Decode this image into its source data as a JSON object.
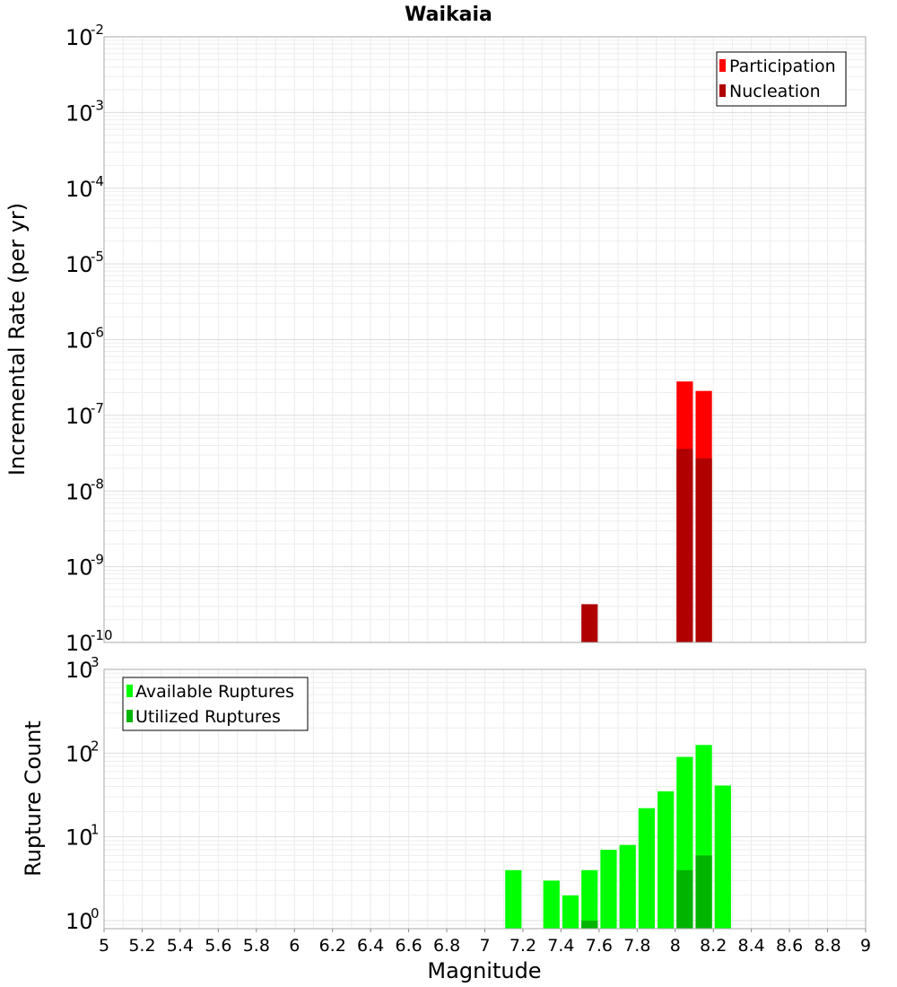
{
  "chart_data": [
    {
      "type": "bar",
      "title": "Waikaia",
      "ylabel": "Incremental Rate (per yr)",
      "xlabel": "",
      "yscale": "log",
      "ylim": [
        1e-10,
        0.01
      ],
      "xlim": [
        5,
        9
      ],
      "bin_width": 0.1,
      "grid": true,
      "legend_position": "top-right",
      "series": [
        {
          "name": "Participation",
          "color": "#ff0000",
          "x": [
            8.05,
            8.15
          ],
          "values": [
            2.8e-07,
            2.1e-07
          ]
        },
        {
          "name": "Nucleation",
          "color": "#b00000",
          "x": [
            7.55,
            8.05,
            8.15
          ],
          "values": [
            3.2e-10,
            3.6e-08,
            2.7e-08
          ]
        }
      ],
      "y_ticks": [
        {
          "base": "10",
          "exp": "-2"
        },
        {
          "base": "10",
          "exp": "-3"
        },
        {
          "base": "10",
          "exp": "-4"
        },
        {
          "base": "10",
          "exp": "-5"
        },
        {
          "base": "10",
          "exp": "-6"
        },
        {
          "base": "10",
          "exp": "-7"
        },
        {
          "base": "10",
          "exp": "-8"
        },
        {
          "base": "10",
          "exp": "-9"
        },
        {
          "base": "10",
          "exp": "-10"
        }
      ]
    },
    {
      "type": "bar",
      "title": "",
      "ylabel": "Rupture Count",
      "xlabel": "Magnitude",
      "yscale": "log",
      "ylim": [
        0.8,
        1000
      ],
      "xlim": [
        5,
        9
      ],
      "bin_width": 0.1,
      "grid": true,
      "legend_position": "top-left",
      "series": [
        {
          "name": "Available Ruptures",
          "color": "#00ff00",
          "x": [
            7.15,
            7.35,
            7.45,
            7.55,
            7.65,
            7.75,
            7.85,
            7.95,
            8.05,
            8.15,
            8.25
          ],
          "values": [
            4,
            3,
            2,
            4,
            7,
            8,
            22,
            35,
            90,
            125,
            41
          ]
        },
        {
          "name": "Utilized Ruptures",
          "color": "#00b400",
          "x": [
            7.55,
            8.05,
            8.15
          ],
          "values": [
            1,
            4,
            6
          ]
        }
      ],
      "y_ticks": [
        {
          "base": "10",
          "exp": "3"
        },
        {
          "base": "10",
          "exp": "2"
        },
        {
          "base": "10",
          "exp": "1"
        },
        {
          "base": "10",
          "exp": "0"
        }
      ],
      "x_ticks": [
        "5",
        "5.2",
        "5.4",
        "5.6",
        "5.8",
        "6",
        "6.2",
        "6.4",
        "6.6",
        "6.8",
        "7",
        "7.2",
        "7.4",
        "7.6",
        "7.8",
        "8",
        "8.2",
        "8.4",
        "8.6",
        "8.8",
        "9"
      ]
    }
  ]
}
